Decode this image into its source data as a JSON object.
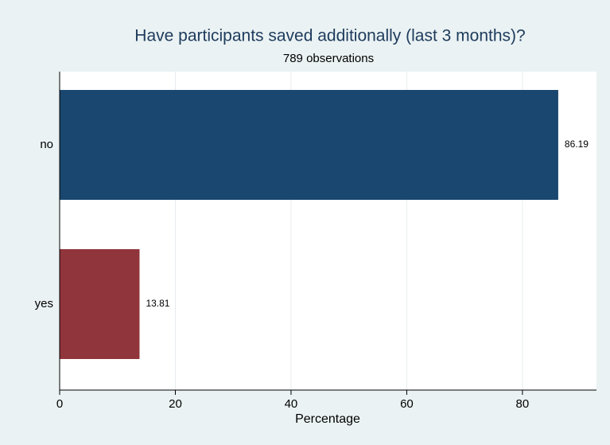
{
  "chart_data": {
    "type": "bar",
    "orientation": "horizontal",
    "title": "Have participants saved additionally (last 3 months)?",
    "subtitle": "789 observations",
    "xlabel": "Percentage",
    "categories": [
      "no",
      "yes"
    ],
    "values": [
      86.19,
      13.81
    ],
    "colors": [
      "#1a476f",
      "#90353b"
    ],
    "xlim": [
      0,
      92.8
    ],
    "xticks": [
      0,
      20,
      40,
      60,
      80
    ],
    "grid": true
  }
}
